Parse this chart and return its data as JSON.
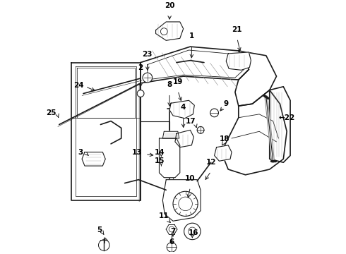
{
  "background_color": "#ffffff",
  "line_color": "#1a1a1a",
  "text_color": "#000000",
  "fig_width": 4.9,
  "fig_height": 3.6,
  "dpi": 100,
  "label_fontsize": 7.5
}
